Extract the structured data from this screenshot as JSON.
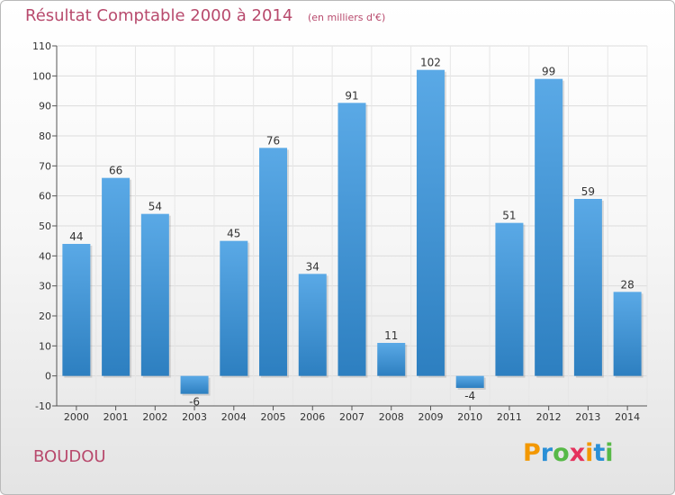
{
  "title": "Résultat Comptable 2000 à 2014",
  "subtitle": "(en milliers d'€)",
  "commune": "BOUDOU",
  "logo": {
    "text": "Proxiti",
    "letters": [
      "P",
      "r",
      "o",
      "x",
      "i",
      "t",
      "i"
    ],
    "colors": [
      "#f39800",
      "#2a8fd6",
      "#57b947",
      "#e5335d",
      "#f39800",
      "#2a8fd6",
      "#57b947"
    ]
  },
  "colors": {
    "title": "#b84a6d",
    "bar_light": "#5aa9e6",
    "bar_dark": "#2d7fc0",
    "axis": "#555555"
  },
  "chart_data": {
    "type": "bar",
    "title": "Résultat Comptable 2000 à 2014",
    "subtitle": "(en milliers d'€)",
    "xlabel": "",
    "ylabel": "",
    "categories": [
      "2000",
      "2001",
      "2002",
      "2003",
      "2004",
      "2005",
      "2006",
      "2007",
      "2008",
      "2009",
      "2010",
      "2011",
      "2012",
      "2013",
      "2014"
    ],
    "values": [
      44,
      66,
      54,
      -6,
      45,
      76,
      34,
      91,
      11,
      102,
      -4,
      51,
      99,
      59,
      28
    ],
    "labels": [
      "44",
      "66",
      "54",
      "-6",
      "45",
      "76",
      "34",
      "91",
      "11",
      "102",
      "-4",
      "51",
      "99",
      "59",
      "28"
    ],
    "ylim": [
      -10,
      110
    ],
    "yticks": [
      -10,
      0,
      10,
      20,
      30,
      40,
      50,
      60,
      70,
      80,
      90,
      100,
      110
    ],
    "grid": true
  }
}
